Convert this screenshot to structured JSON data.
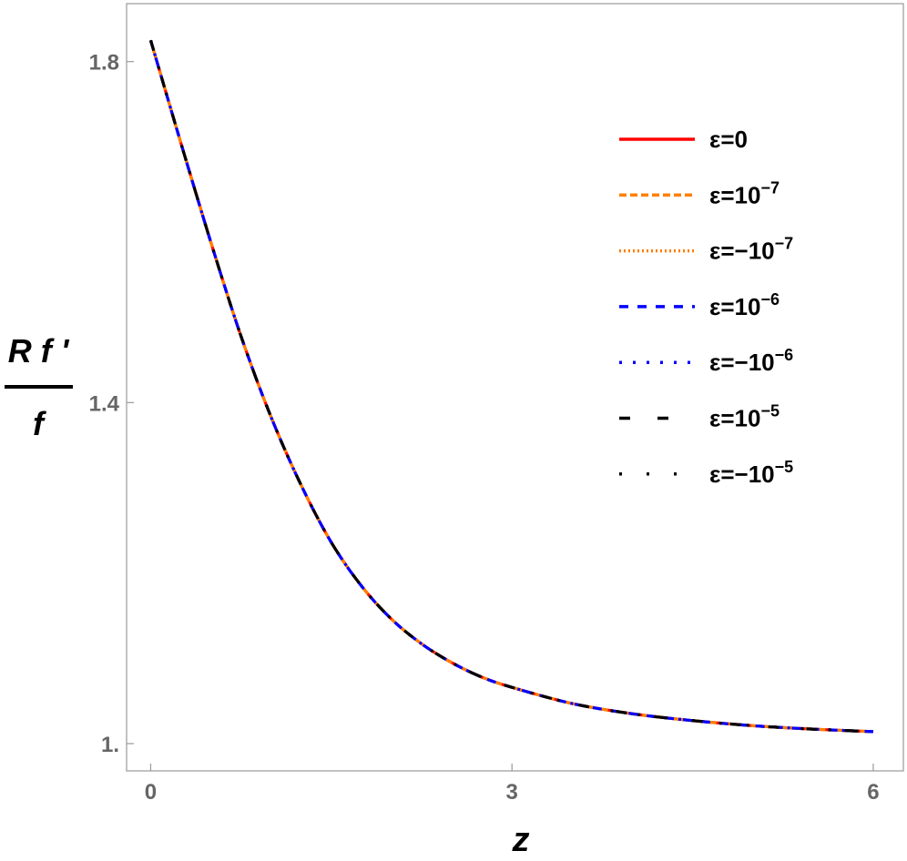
{
  "chart_data": {
    "type": "line",
    "xlabel": "z",
    "ylabel": {
      "numerator": "R f '",
      "denominator": "f"
    },
    "xlim": [
      -0.2,
      6.25
    ],
    "ylim": [
      0.968,
      1.868
    ],
    "xticks": [
      {
        "value": 0,
        "label": "0"
      },
      {
        "value": 3,
        "label": "3"
      },
      {
        "value": 6,
        "label": "6"
      }
    ],
    "yticks": [
      {
        "value": 1.0,
        "label": "1."
      },
      {
        "value": 1.4,
        "label": "1.4"
      },
      {
        "value": 1.8,
        "label": "1.8"
      }
    ],
    "grid": false,
    "legend_position": "right",
    "curve": {
      "x": [
        0,
        0.25,
        0.5,
        0.75,
        1.0,
        1.25,
        1.5,
        1.75,
        2.0,
        2.25,
        2.5,
        2.75,
        3.0,
        3.5,
        4.0,
        4.5,
        5.0,
        5.5,
        6.0
      ],
      "y": [
        1.825,
        1.705,
        1.588,
        1.478,
        1.383,
        1.303,
        1.236,
        1.185,
        1.146,
        1.117,
        1.095,
        1.078,
        1.066,
        1.047,
        1.035,
        1.027,
        1.021,
        1.017,
        1.014
      ]
    },
    "series": [
      {
        "name": "ε=0",
        "color": "#ff0000",
        "dash": "solid"
      },
      {
        "name": "ε=10",
        "exponent": "−7",
        "color": "#ff8000",
        "dash": "dashed"
      },
      {
        "name": "ε=−10",
        "exponent": "−7",
        "color": "#ff8000",
        "dash": "dotted"
      },
      {
        "name": "ε=10",
        "exponent": "−6",
        "color": "#0000ff",
        "dash": "dashed"
      },
      {
        "name": "ε=−10",
        "exponent": "−6",
        "color": "#0000ff",
        "dash": "dotted"
      },
      {
        "name": "ε=10",
        "exponent": "−5",
        "color": "#000000",
        "dash": "dashed"
      },
      {
        "name": "ε=−10",
        "exponent": "−5",
        "color": "#000000",
        "dash": "dotted"
      }
    ]
  }
}
